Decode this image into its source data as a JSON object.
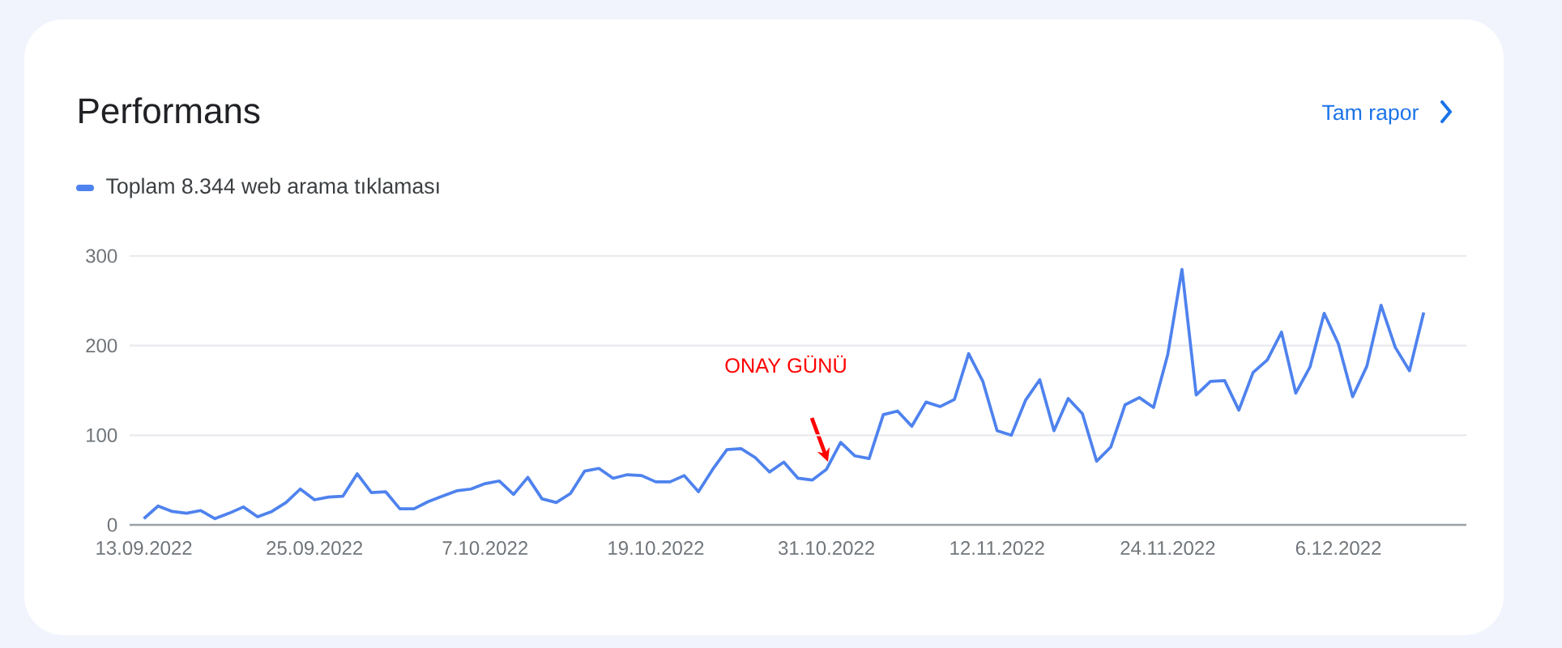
{
  "chart_data": {
    "type": "line",
    "title": "Performans",
    "annotations": [
      "ONAY GÜNÜ",
      "Tam rapor"
    ],
    "x": [
      "2022-09-13",
      "2022-09-14",
      "2022-09-15",
      "2022-09-16",
      "2022-09-17",
      "2022-09-18",
      "2022-09-19",
      "2022-09-20",
      "2022-09-21",
      "2022-09-22",
      "2022-09-23",
      "2022-09-24",
      "2022-09-25",
      "2022-09-26",
      "2022-09-27",
      "2022-09-28",
      "2022-09-29",
      "2022-09-30",
      "2022-10-01",
      "2022-10-02",
      "2022-10-03",
      "2022-10-04",
      "2022-10-05",
      "2022-10-06",
      "2022-10-07",
      "2022-10-08",
      "2022-10-09",
      "2022-10-10",
      "2022-10-11",
      "2022-10-12",
      "2022-10-13",
      "2022-10-14",
      "2022-10-15",
      "2022-10-16",
      "2022-10-17",
      "2022-10-18",
      "2022-10-19",
      "2022-10-20",
      "2022-10-21",
      "2022-10-22",
      "2022-10-23",
      "2022-10-24",
      "2022-10-25",
      "2022-10-26",
      "2022-10-27",
      "2022-10-28",
      "2022-10-29",
      "2022-10-30",
      "2022-10-31",
      "2022-11-01",
      "2022-11-02",
      "2022-11-03",
      "2022-11-04",
      "2022-11-05",
      "2022-11-06",
      "2022-11-07",
      "2022-11-08",
      "2022-11-09",
      "2022-11-10",
      "2022-11-11",
      "2022-11-12",
      "2022-11-13",
      "2022-11-14",
      "2022-11-15",
      "2022-11-16",
      "2022-11-17",
      "2022-11-18",
      "2022-11-19",
      "2022-11-20",
      "2022-11-21",
      "2022-11-22",
      "2022-11-23",
      "2022-11-24",
      "2022-11-25",
      "2022-11-26",
      "2022-11-27",
      "2022-11-28",
      "2022-11-29",
      "2022-11-30",
      "2022-12-01",
      "2022-12-02",
      "2022-12-03",
      "2022-12-04",
      "2022-12-05",
      "2022-12-06",
      "2022-12-07",
      "2022-12-08",
      "2022-12-09",
      "2022-12-10",
      "2022-12-11",
      "2022-12-12"
    ],
    "series": [
      {
        "name": "Toplam 8.344 web arama tıklaması",
        "color": "#4e82ee",
        "values": [
          7,
          21,
          15,
          13,
          16,
          7,
          13,
          20,
          9,
          15,
          25,
          40,
          28,
          31,
          32,
          57,
          36,
          37,
          18,
          18,
          26,
          32,
          38,
          40,
          46,
          49,
          34,
          53,
          29,
          25,
          35,
          60,
          63,
          52,
          56,
          55,
          48,
          48,
          55,
          37,
          62,
          84,
          85,
          75,
          59,
          70,
          52,
          50,
          62,
          92,
          77,
          74,
          123,
          127,
          110,
          137,
          132,
          140,
          191,
          160,
          105,
          100,
          139,
          162,
          105,
          141,
          124,
          71,
          87,
          134,
          142,
          131,
          190,
          285,
          145,
          160,
          161,
          128,
          170,
          184,
          215,
          147,
          176,
          236,
          202,
          143,
          177,
          245,
          198,
          172,
          237
        ]
      }
    ],
    "xlim": [
      "2022-09-12",
      "2022-12-15"
    ],
    "xticks": [
      {
        "value": "2022-09-13",
        "label": "13.09.2022"
      },
      {
        "value": "2022-09-25",
        "label": "25.09.2022"
      },
      {
        "value": "2022-10-07",
        "label": "7.10.2022"
      },
      {
        "value": "2022-10-19",
        "label": "19.10.2022"
      },
      {
        "value": "2022-10-31",
        "label": "31.10.2022"
      },
      {
        "value": "2022-11-12",
        "label": "12.11.2022"
      },
      {
        "value": "2022-11-24",
        "label": "24.11.2022"
      },
      {
        "value": "2022-12-06",
        "label": "6.12.2022"
      }
    ],
    "ylim": [
      0,
      300
    ],
    "yticks": [
      0,
      100,
      200,
      300
    ],
    "grid": "y",
    "legend": "top left",
    "marker": "none",
    "line_style": "solid"
  }
}
